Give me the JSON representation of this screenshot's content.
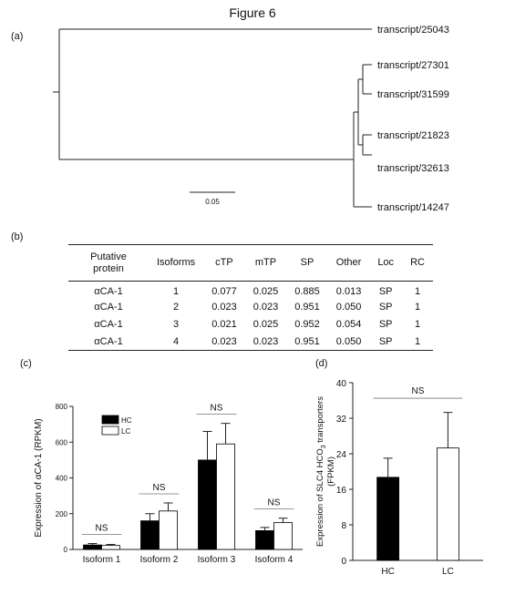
{
  "figure_title": "Figure 6",
  "panel_labels": {
    "a": "(a)",
    "b": "(b)",
    "c": "(c)",
    "d": "(d)"
  },
  "tree": {
    "leaves": [
      "transcript/25043",
      "transcript/27301",
      "transcript/31599",
      "transcript/21823",
      "transcript/32613",
      "transcript/14247"
    ],
    "scale_label": "0.05"
  },
  "table": {
    "headers": [
      "Putative protein",
      "Isoforms",
      "cTP",
      "mTP",
      "SP",
      "Other",
      "Loc",
      "RC"
    ],
    "rows": [
      [
        "αCA-1",
        "1",
        "0.077",
        "0.025",
        "0.885",
        "0.013",
        "SP",
        "1"
      ],
      [
        "αCA-1",
        "2",
        "0.023",
        "0.023",
        "0.951",
        "0.050",
        "SP",
        "1"
      ],
      [
        "αCA-1",
        "3",
        "0.021",
        "0.025",
        "0.952",
        "0.054",
        "SP",
        "1"
      ],
      [
        "αCA-1",
        "4",
        "0.023",
        "0.023",
        "0.951",
        "0.050",
        "SP",
        "1"
      ]
    ]
  },
  "chart_data": [
    {
      "type": "bar",
      "categories": [
        "Isoform 1",
        "Isoform 2",
        "Isoform 3",
        "Isoform 4"
      ],
      "series": [
        {
          "name": "HC",
          "values": [
            25,
            160,
            500,
            105
          ],
          "errors": [
            8,
            40,
            160,
            18
          ],
          "color": "#000000"
        },
        {
          "name": "LC",
          "values": [
            22,
            215,
            590,
            150
          ],
          "errors": [
            6,
            45,
            115,
            25
          ],
          "color": "#ffffff"
        }
      ],
      "ylabel": "Expression of αCA-1 (RPKM)",
      "ylim": [
        0,
        800
      ],
      "yticks": [
        0,
        200,
        400,
        600,
        800
      ],
      "significance": [
        "NS",
        "NS",
        "NS",
        "NS"
      ],
      "legend_position": "top-left"
    },
    {
      "type": "bar",
      "categories": [
        "HC",
        "LC"
      ],
      "values": [
        18.7,
        25.3
      ],
      "errors": [
        4.3,
        8.0
      ],
      "colors": [
        "#000000",
        "#ffffff"
      ],
      "ylabel_line1": "Expression of SLC4 HCO",
      "ylabel_sub": "3",
      "ylabel_line1_end": " transporters",
      "ylabel_line2": "(FPKM)",
      "ylim": [
        0,
        40
      ],
      "yticks": [
        0,
        8,
        16,
        24,
        32,
        40
      ],
      "significance": "NS"
    }
  ]
}
